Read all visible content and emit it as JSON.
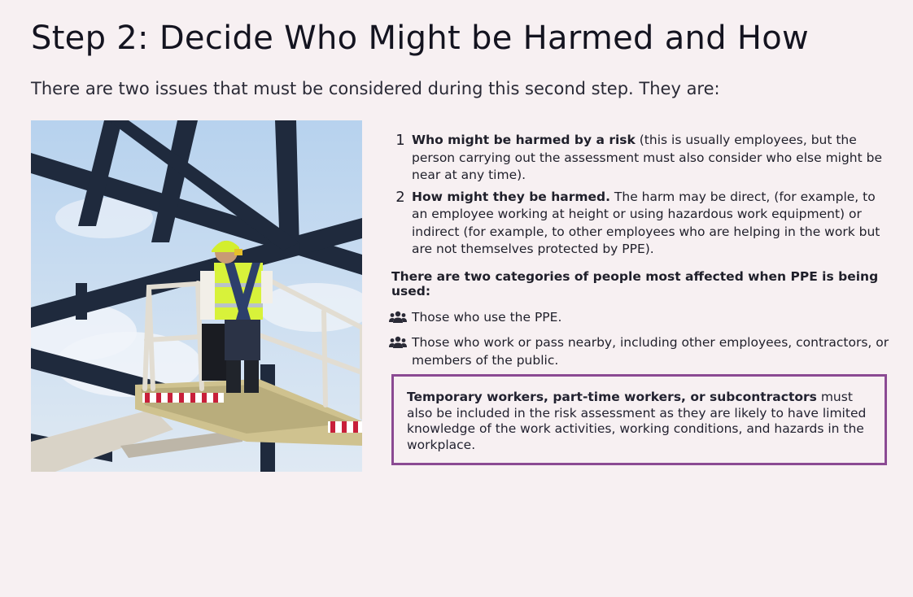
{
  "page": {
    "title": "Step 2: Decide Who Might be Harmed and How",
    "intro": "There are two issues that must be considered during this second step. They are:"
  },
  "issues": [
    {
      "number": "1",
      "bold": "Who might be harmed by a risk",
      "text": " (this is usually employees, but the person carrying out the assessment must also consider who else might be near at any time)."
    },
    {
      "number": "2",
      "bold": "How might they be harmed.",
      "text": " The harm may be direct, (for example, to an employee working at height or using hazardous work equipment) or indirect (for example, to other employees who are helping in the work but are not themselves protected by PPE)."
    }
  ],
  "categories": {
    "heading": "There are two categories of people most affected when PPE is being used:",
    "items": [
      {
        "icon": "users-icon",
        "text": "Those who use the PPE."
      },
      {
        "icon": "users-icon",
        "text": "Those who work or pass nearby, including other employees, contractors, or members of the public."
      }
    ]
  },
  "callout": {
    "bold": "Temporary workers, part-time workers, or subcontractors",
    "text": " must also be included in the risk assessment as they are likely to have limited knowledge of the work activities, working conditions, and hazards in the workplace."
  },
  "colors": {
    "background": "#f7f0f2",
    "callout_border": "#8b4a93",
    "sky": "#c9ddef",
    "steel": "#1f2a3d",
    "hi_vis": "#d8f23a"
  }
}
